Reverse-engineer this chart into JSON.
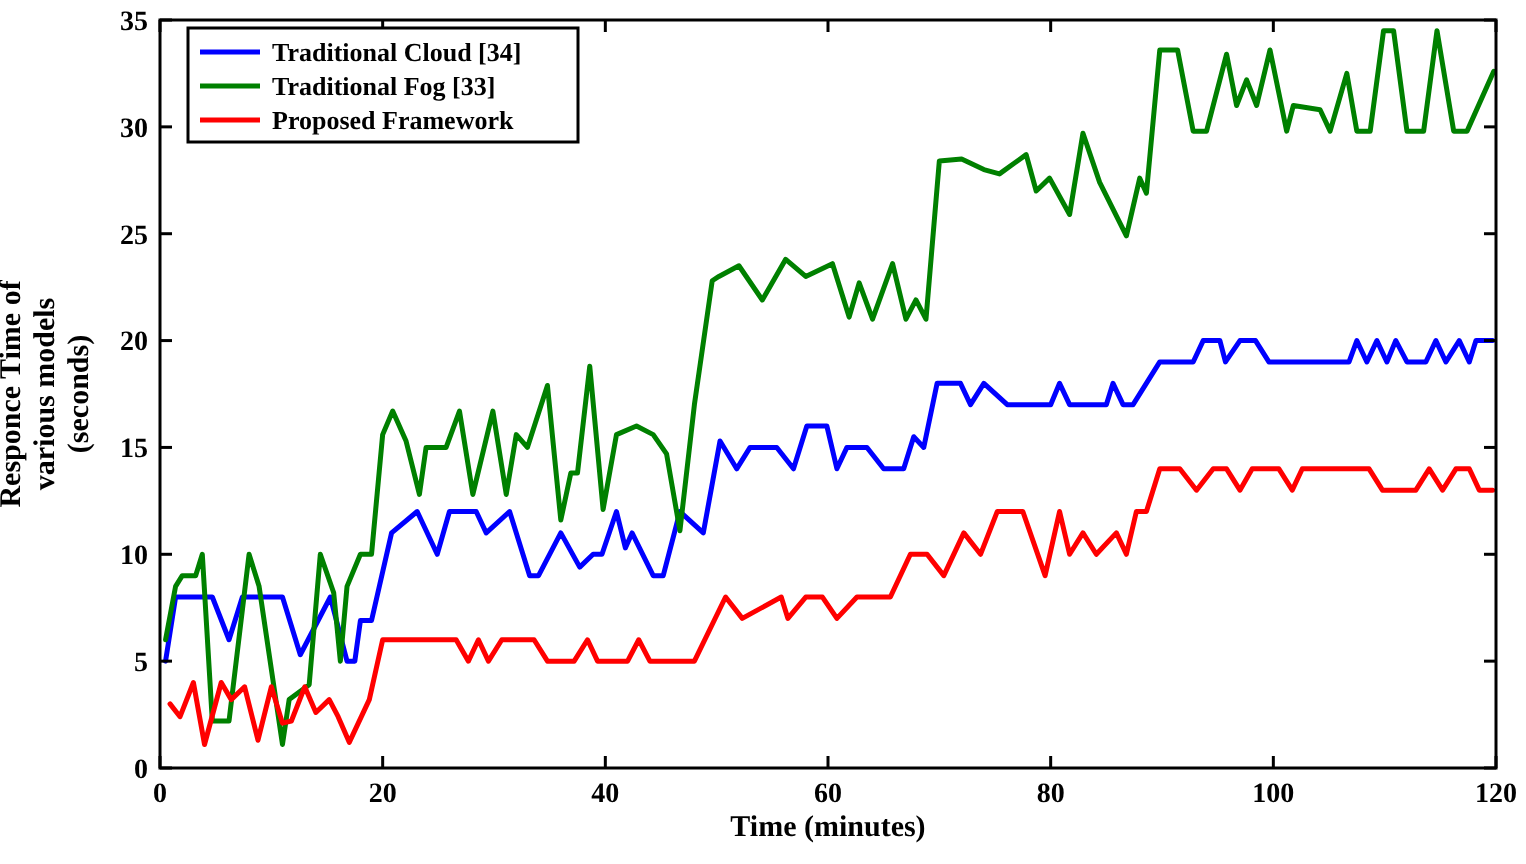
{
  "chart_data": {
    "type": "line",
    "xlabel": "Time (minutes)",
    "ylabel": "Responce Time of various models (seconds)",
    "xlim": [
      0,
      120
    ],
    "ylim": [
      0,
      35
    ],
    "xticks": [
      0,
      20,
      40,
      60,
      80,
      100,
      120
    ],
    "yticks": [
      0,
      5,
      10,
      15,
      20,
      25,
      30,
      35
    ],
    "legend": "top left",
    "grid": false,
    "marker": "none",
    "line_style": "solid",
    "series": [
      {
        "name": "Traditional Cloud [34]",
        "color": "#0000ff",
        "x": [
          0.5,
          1.4,
          4.7,
          6.2,
          7.4,
          11,
          12.6,
          15.3,
          16.8,
          17.5,
          18,
          19,
          20.8,
          23.1,
          24.9,
          26,
          28.4,
          29.3,
          31.4,
          33.2,
          34,
          36,
          37.7,
          38.9,
          39.7,
          41,
          41.8,
          42.4,
          44.3,
          45.2,
          46.7,
          48.8,
          50.3,
          51.8,
          53,
          55.4,
          56.9,
          58.1,
          59.9,
          60.8,
          61.7,
          63.5,
          65,
          66.8,
          67.7,
          68.6,
          69.8,
          71.9,
          72.8,
          74,
          76.1,
          80,
          80.8,
          81.7,
          85,
          85.6,
          86.5,
          87.4,
          89.8,
          92.8,
          93.7,
          95.2,
          95.7,
          97,
          98.4,
          99.6,
          106.8,
          107.5,
          108.4,
          109.3,
          110.2,
          111,
          112,
          113.7,
          114.6,
          115.5,
          116.7,
          117.6,
          118.2,
          119.7
        ],
        "values": [
          5,
          8,
          8,
          6,
          8,
          8,
          5.3,
          8,
          5,
          5,
          6.9,
          6.9,
          11,
          12,
          10,
          12,
          12,
          11,
          12,
          9,
          9,
          11,
          9.4,
          10,
          10,
          12,
          10.3,
          11,
          9,
          9,
          12,
          11,
          15.3,
          14,
          15,
          15,
          14,
          16,
          16,
          14,
          15,
          15,
          14,
          14,
          15.5,
          15,
          18,
          18,
          17,
          18,
          17,
          17,
          18,
          17,
          17,
          18,
          17,
          17,
          19,
          19,
          20,
          20,
          19,
          20,
          20,
          19,
          19,
          20,
          19,
          20,
          19,
          20,
          19,
          19,
          20,
          19,
          20,
          19,
          20,
          20
        ]
      },
      {
        "name": "Traditional Fog [33]",
        "color": "#008000",
        "x": [
          0.5,
          1.4,
          2,
          3.2,
          3.8,
          4.7,
          6.2,
          8,
          8.9,
          11,
          11.6,
          13.4,
          14.4,
          15.6,
          16.2,
          16.8,
          18,
          19,
          20,
          20.9,
          22.1,
          23.3,
          23.9,
          25.7,
          26.9,
          28.1,
          29.9,
          31.1,
          32,
          33,
          34.8,
          36,
          36.9,
          37.5,
          38.6,
          39.8,
          41,
          42.8,
          44.3,
          45.5,
          46.7,
          48,
          49.6,
          50.2,
          52,
          54.1,
          56.2,
          58,
          60.4,
          61.9,
          62.8,
          64,
          65.8,
          67,
          67.9,
          68.8,
          70,
          72,
          74,
          75.4,
          77.8,
          78.7,
          79.9,
          81.7,
          82.9,
          84.4,
          86.8,
          88,
          88.6,
          89.8,
          91.4,
          92.8,
          94,
          95.8,
          96.7,
          97.6,
          98.5,
          99.7,
          101.2,
          101.8,
          104.2,
          105.1,
          106.6,
          107.5,
          108.7,
          109.9,
          110.8,
          112,
          113.5,
          114.7,
          116.2,
          117.4,
          119.8
        ],
        "values": [
          6,
          8.5,
          9,
          9,
          10,
          2.2,
          2.2,
          10,
          8.5,
          1.1,
          3.2,
          3.9,
          10,
          8.2,
          5,
          8.5,
          10,
          10,
          15.6,
          16.7,
          15.3,
          12.8,
          15,
          15,
          16.7,
          12.8,
          16.7,
          12.8,
          15.6,
          15,
          17.9,
          11.6,
          13.8,
          13.8,
          18.8,
          12.1,
          15.6,
          16,
          15.6,
          14.7,
          11.1,
          17,
          22.8,
          23,
          23.5,
          21.9,
          23.8,
          23,
          23.6,
          21.1,
          22.7,
          21,
          23.6,
          21,
          21.9,
          21,
          28.4,
          28.5,
          28,
          27.8,
          28.7,
          27,
          27.6,
          25.9,
          29.7,
          27.4,
          24.9,
          27.6,
          26.9,
          33.6,
          33.6,
          29.8,
          29.8,
          33.4,
          31,
          32.2,
          31,
          33.6,
          29.8,
          31,
          30.8,
          29.8,
          32.5,
          29.8,
          29.8,
          34.5,
          34.5,
          29.8,
          29.8,
          34.5,
          29.8,
          29.8,
          32.6
        ]
      },
      {
        "name": "Proposed Framework",
        "color": "#ff0000",
        "x": [
          0.9,
          1.8,
          3,
          4,
          5.5,
          6.4,
          7.6,
          8.8,
          10,
          11,
          11.8,
          13,
          14,
          15.2,
          16,
          17,
          18.8,
          20,
          26.6,
          27.7,
          28.6,
          29.5,
          30.7,
          33.6,
          34.8,
          37.2,
          38.4,
          39.3,
          42,
          43,
          44,
          46,
          48,
          50.8,
          52.3,
          55.8,
          56.4,
          58,
          59.5,
          60.8,
          62.6,
          65.6,
          67.4,
          68.9,
          70.4,
          72.2,
          73.7,
          75.2,
          77.5,
          79.5,
          80.8,
          81.7,
          82.9,
          84.1,
          85.9,
          86.8,
          87.7,
          88.6,
          89.8,
          91.6,
          93.1,
          94.6,
          95.8,
          97,
          98.1,
          100.5,
          101.7,
          102.6,
          108.6,
          109.8,
          112.8,
          114,
          115.2,
          116.4,
          117.6,
          118.5,
          119.7
        ],
        "values": [
          3,
          2.4,
          4,
          1.1,
          4,
          3.2,
          3.8,
          1.3,
          3.8,
          2.1,
          2.2,
          3.8,
          2.6,
          3.2,
          2.4,
          1.2,
          3.2,
          6,
          6,
          5,
          6,
          5,
          6,
          6,
          5,
          5,
          6,
          5,
          5,
          6,
          5,
          5,
          5,
          8,
          7,
          8,
          7,
          8,
          8,
          7,
          8,
          8,
          10,
          10,
          9,
          11,
          10,
          12,
          12,
          9,
          12,
          10,
          11,
          10,
          11,
          10,
          12,
          12,
          14,
          14,
          13,
          14,
          14,
          13,
          14,
          14,
          13,
          14,
          14,
          13,
          13,
          14,
          13,
          14,
          14,
          13,
          13
        ]
      }
    ]
  }
}
